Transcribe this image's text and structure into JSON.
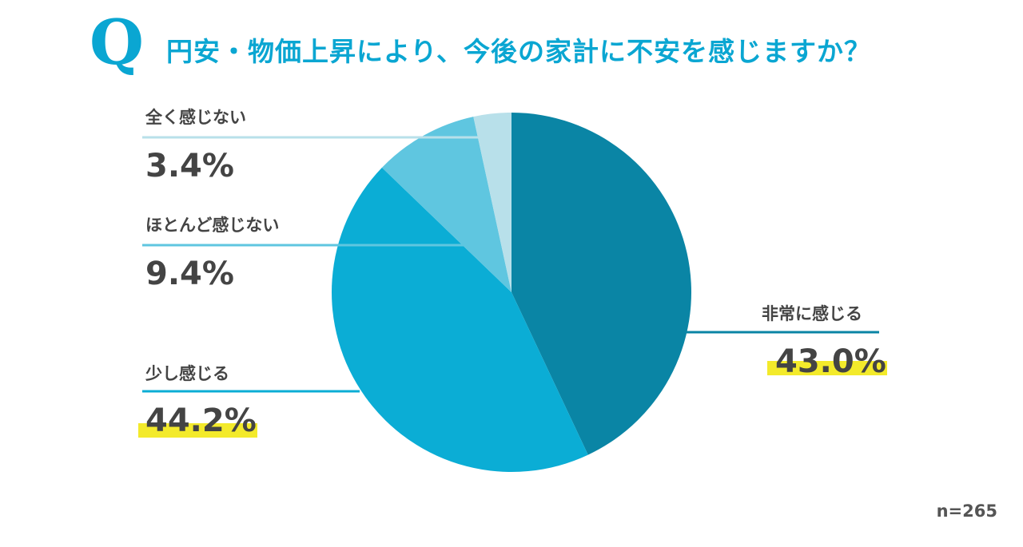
{
  "chart_data": {
    "type": "pie",
    "title_mark": "Q",
    "title": "円安・物価上昇により、今後の家計に不安を感じますか？",
    "categories": [
      "非常に感じる",
      "少し感じる",
      "ほとんど感じない",
      "全く感じない"
    ],
    "values": [
      43.0,
      44.2,
      9.4,
      3.4
    ],
    "value_labels": [
      "43.0%",
      "44.2%",
      "9.4%",
      "3.4%"
    ],
    "colors": [
      "#0a85a5",
      "#0badd5",
      "#5fc6e0",
      "#b8e0ea"
    ],
    "highlight_color": "#f3ea2b",
    "start": "top, clockwise",
    "note": "n=265"
  }
}
